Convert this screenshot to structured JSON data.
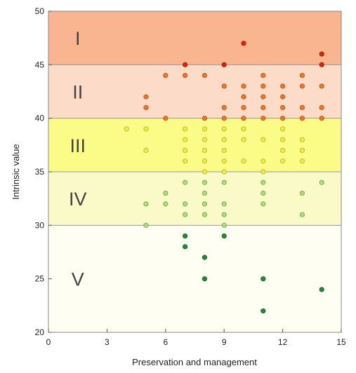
{
  "chart_data": {
    "type": "scatter",
    "xlabel": "Preservation and management",
    "ylabel": "Intrinsic value",
    "xlim": [
      0,
      15
    ],
    "ylim": [
      20,
      50
    ],
    "xticks": [
      0,
      3,
      6,
      9,
      12,
      15
    ],
    "yticks": [
      20,
      25,
      30,
      35,
      40,
      45,
      50
    ],
    "grid": false,
    "bands": [
      {
        "label": "I",
        "from": 45,
        "to": 50,
        "color": "#f9b58f"
      },
      {
        "label": "II",
        "from": 40,
        "to": 45,
        "color": "#fcdcc9"
      },
      {
        "label": "III",
        "from": 35,
        "to": 40,
        "color": "#fbfb88"
      },
      {
        "label": "IV",
        "from": 30,
        "to": 35,
        "color": "#fafac9"
      },
      {
        "label": "V",
        "from": 20,
        "to": 30,
        "color": "#fefef2"
      }
    ],
    "series": [
      {
        "color": "#d9230f",
        "stroke": "#a81a0a",
        "points": [
          [
            7,
            45
          ],
          [
            9,
            45
          ],
          [
            10,
            47
          ],
          [
            14,
            45
          ],
          [
            14,
            46
          ]
        ]
      },
      {
        "color": "#ee7522",
        "stroke": "#b5561a",
        "points": [
          [
            5,
            42
          ],
          [
            5,
            41
          ],
          [
            6,
            44
          ],
          [
            6,
            40
          ],
          [
            7,
            44
          ],
          [
            8,
            44
          ],
          [
            8,
            40
          ],
          [
            9,
            43
          ],
          [
            9,
            41
          ],
          [
            9,
            40
          ],
          [
            10,
            43
          ],
          [
            10,
            42
          ],
          [
            10,
            41
          ],
          [
            10,
            40
          ],
          [
            11,
            44
          ],
          [
            11,
            43
          ],
          [
            11,
            42
          ],
          [
            11,
            41
          ],
          [
            11,
            40
          ],
          [
            12,
            43
          ],
          [
            12,
            42
          ],
          [
            12,
            41
          ],
          [
            12,
            40
          ],
          [
            13,
            44
          ],
          [
            13,
            43
          ],
          [
            13,
            41
          ],
          [
            13,
            40
          ],
          [
            14,
            43
          ],
          [
            14,
            41
          ],
          [
            14,
            40
          ]
        ]
      },
      {
        "color": "#ecec42",
        "stroke": "#b3b32a",
        "points": [
          [
            4,
            39
          ],
          [
            5,
            39
          ],
          [
            5,
            37
          ],
          [
            7,
            39
          ],
          [
            7,
            38
          ],
          [
            7,
            37
          ],
          [
            7,
            36
          ],
          [
            8,
            39
          ],
          [
            8,
            38
          ],
          [
            8,
            37
          ],
          [
            8,
            36
          ],
          [
            8,
            35
          ],
          [
            9,
            39
          ],
          [
            9,
            38
          ],
          [
            9,
            37
          ],
          [
            9,
            36
          ],
          [
            9,
            35
          ],
          [
            10,
            39
          ],
          [
            10,
            38
          ],
          [
            10,
            36
          ],
          [
            11,
            38
          ],
          [
            11,
            36
          ],
          [
            11,
            35
          ],
          [
            12,
            39
          ],
          [
            12,
            38
          ],
          [
            12,
            37
          ],
          [
            12,
            36
          ],
          [
            13,
            38
          ],
          [
            13,
            37
          ],
          [
            13,
            36
          ]
        ]
      },
      {
        "color": "#a9dc7f",
        "stroke": "#6fa845",
        "points": [
          [
            5,
            32
          ],
          [
            5,
            30
          ],
          [
            6,
            33
          ],
          [
            6,
            32
          ],
          [
            7,
            34
          ],
          [
            7,
            32
          ],
          [
            7,
            31
          ],
          [
            8,
            34
          ],
          [
            8,
            33
          ],
          [
            8,
            32
          ],
          [
            8,
            31
          ],
          [
            9,
            34
          ],
          [
            9,
            32
          ],
          [
            9,
            31
          ],
          [
            9,
            30
          ],
          [
            11,
            34
          ],
          [
            11,
            33
          ],
          [
            11,
            32
          ],
          [
            13,
            33
          ],
          [
            13,
            31
          ],
          [
            14,
            34
          ]
        ]
      },
      {
        "color": "#1f8a38",
        "stroke": "#156328",
        "points": [
          [
            7,
            29
          ],
          [
            7,
            28
          ],
          [
            8,
            27
          ],
          [
            8,
            25
          ],
          [
            9,
            29
          ],
          [
            11,
            25
          ],
          [
            11,
            22
          ],
          [
            14,
            24
          ]
        ]
      }
    ]
  }
}
